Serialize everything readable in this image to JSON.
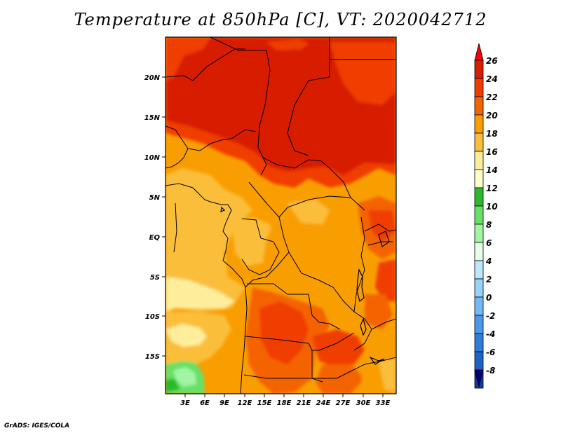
{
  "title": "Temperature at 850hPa [C], VT: 2020042712",
  "credit": "GrADS: IGES/COLA",
  "map": {
    "lon_labels": [
      "3E",
      "6E",
      "9E",
      "12E",
      "15E",
      "18E",
      "21E",
      "24E",
      "27E",
      "30E",
      "33E"
    ],
    "lat_labels": [
      "20N",
      "15N",
      "10N",
      "5N",
      "EQ",
      "5S",
      "10S",
      "15S"
    ]
  },
  "colorbar": {
    "labels": [
      "26",
      "24",
      "22",
      "20",
      "18",
      "16",
      "14",
      "12",
      "10",
      "8",
      "6",
      "4",
      "2",
      "0",
      "-2",
      "-4",
      "-6",
      "-8"
    ],
    "colors": [
      "#ff0000",
      "#d71e00",
      "#f03c00",
      "#f46400",
      "#f99e00",
      "#fbbe3a",
      "#feee9b",
      "#fefec8",
      "#2cb92c",
      "#68e068",
      "#a2f5a2",
      "#e6ffe6",
      "#bde6ff",
      "#98d1fa",
      "#74b8f5",
      "#4a98eb",
      "#2f7ddb",
      "#1b63c8",
      "#0b3da3",
      "#00007b"
    ]
  },
  "chart_data": {
    "type": "heatmap",
    "title": "Temperature at 850hPa [C], VT: 2020042712",
    "variable": "Temperature at 850hPa",
    "units": "C",
    "valid_time": "2020042712",
    "x_ticks": [
      "3E",
      "6E",
      "9E",
      "12E",
      "15E",
      "18E",
      "21E",
      "24E",
      "27E",
      "30E",
      "33E"
    ],
    "y_ticks": [
      "20N",
      "15N",
      "10N",
      "5N",
      "EQ",
      "5S",
      "10S",
      "15S"
    ],
    "color_scale_levels": [
      26,
      24,
      22,
      20,
      18,
      16,
      14,
      12,
      10,
      8,
      6,
      4,
      2,
      0,
      -2,
      -4,
      -6,
      -8
    ]
  }
}
